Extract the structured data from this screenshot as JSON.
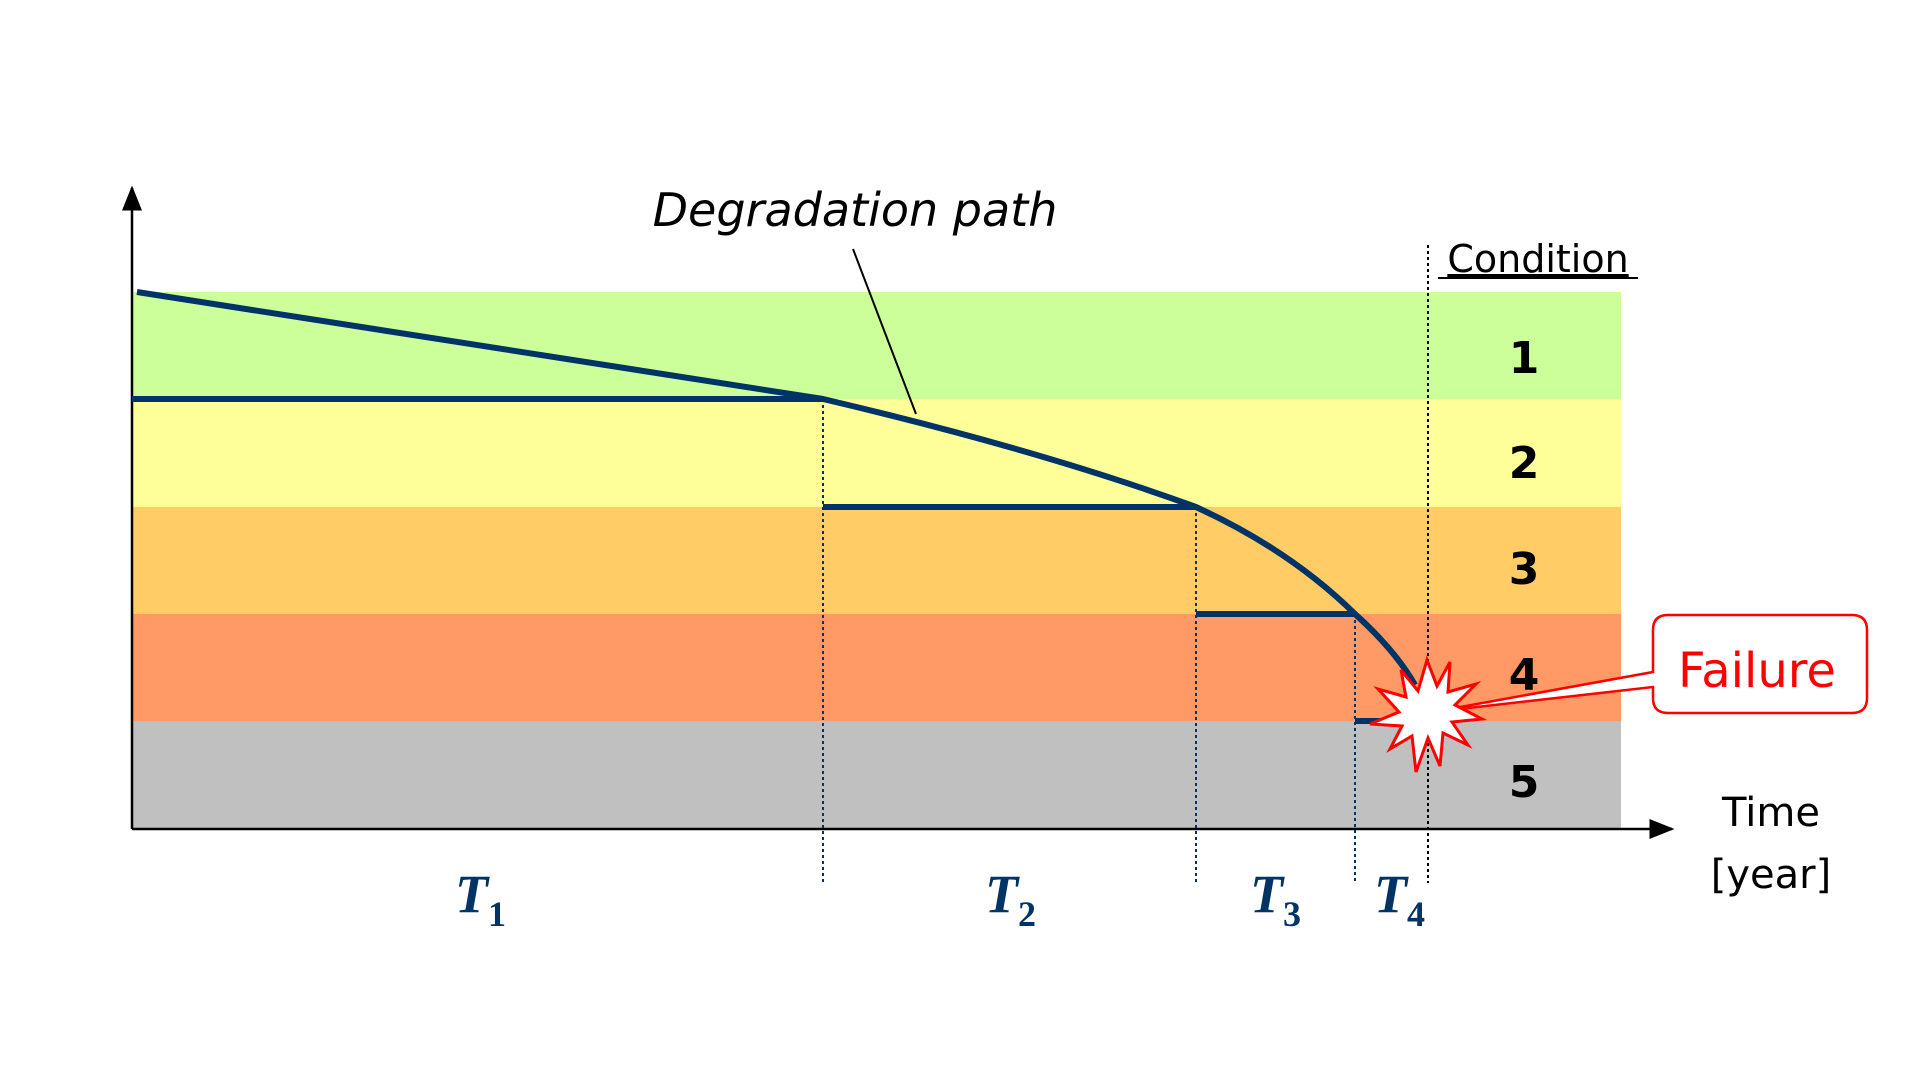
{
  "title": "Degradation path",
  "condition_header": "Condition",
  "conditions": [
    {
      "label": "1",
      "color": "#ccff99"
    },
    {
      "label": "2",
      "color": "#ffff99"
    },
    {
      "label": "3",
      "color": "#ffcc66"
    },
    {
      "label": "4",
      "color": "#ff9966"
    },
    {
      "label": "5",
      "color": "#c0c0c0"
    }
  ],
  "x_axis": {
    "line1": "Time",
    "line2": "[year]"
  },
  "periods": [
    {
      "letter": "T",
      "sub": "1"
    },
    {
      "letter": "T",
      "sub": "2"
    },
    {
      "letter": "T",
      "sub": "3"
    },
    {
      "letter": "T",
      "sub": "4"
    }
  ],
  "failure_label": "Failure",
  "colors": {
    "path": "#003366",
    "failure": "#ff0000",
    "axis": "#000000"
  }
}
